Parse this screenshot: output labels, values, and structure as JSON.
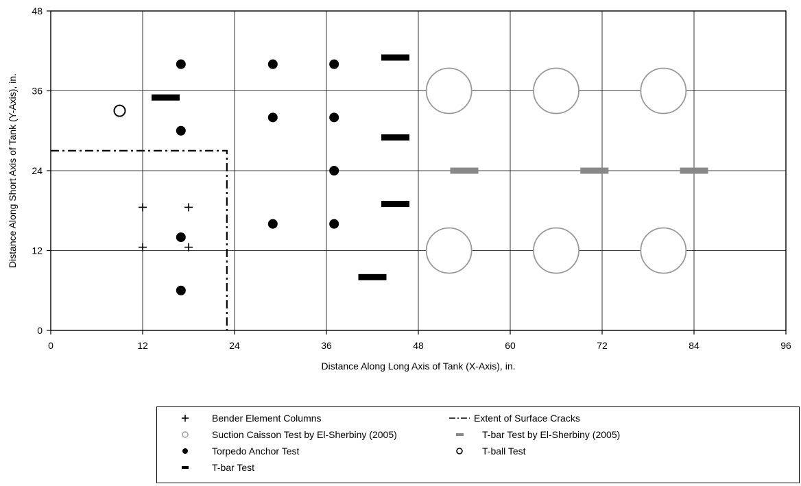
{
  "chart_data": {
    "type": "scatter",
    "xlabel": "Distance Along Long Axis of Tank (X-Axis), in.",
    "ylabel": "Distance Along Short Axis of Tank (Y-Axis), in.",
    "xlim": [
      0,
      96
    ],
    "ylim": [
      0,
      48
    ],
    "xticks": [
      "0",
      "12",
      "24",
      "36",
      "48",
      "60",
      "72",
      "84",
      "96"
    ],
    "yticks": [
      "0",
      "12",
      "24",
      "36",
      "48"
    ],
    "grid": true,
    "legend_position": "bottom",
    "series": [
      {
        "key": "bender",
        "name": "Bender Element Columns",
        "marker": "plus",
        "color": "#000000",
        "points": [
          [
            12,
            18.5
          ],
          [
            18,
            18.5
          ],
          [
            12,
            12.5
          ],
          [
            18,
            12.5
          ]
        ]
      },
      {
        "key": "cracks",
        "name": "Extent of Surface Cracks",
        "marker": "dashdot-line",
        "color": "#000000",
        "points": [
          [
            0,
            27
          ],
          [
            23,
            27
          ],
          [
            23,
            0
          ]
        ]
      },
      {
        "key": "caisson",
        "name": "Suction Caisson Test by El-Sherbiny (2005)",
        "marker": "open-circle",
        "color": "#999999",
        "points": [
          [
            52,
            36
          ],
          [
            66,
            36
          ],
          [
            80,
            36
          ],
          [
            52,
            12
          ],
          [
            66,
            12
          ],
          [
            80,
            12
          ]
        ]
      },
      {
        "key": "tbar_es",
        "name": "T-bar Test by El-Sherbiny (2005)",
        "marker": "dash",
        "color": "#888888",
        "points": [
          [
            54,
            24
          ],
          [
            71,
            24
          ],
          [
            84,
            24
          ]
        ]
      },
      {
        "key": "torpedo",
        "name": "Torpedo Anchor Test",
        "marker": "filled-circle",
        "color": "#000000",
        "points": [
          [
            17,
            40
          ],
          [
            17,
            30
          ],
          [
            17,
            14
          ],
          [
            17,
            6
          ],
          [
            29,
            40
          ],
          [
            29,
            32
          ],
          [
            29,
            16
          ],
          [
            37,
            40
          ],
          [
            37,
            32
          ],
          [
            37,
            24
          ],
          [
            37,
            16
          ]
        ]
      },
      {
        "key": "tball",
        "name": "T-ball Test",
        "marker": "small-open-circle",
        "color": "#000000",
        "points": [
          [
            9,
            33
          ]
        ]
      },
      {
        "key": "tbar",
        "name": "T-bar Test",
        "marker": "dash",
        "color": "#000000",
        "points": [
          [
            15,
            35
          ],
          [
            45,
            41
          ],
          [
            45,
            29
          ],
          [
            45,
            19
          ],
          [
            42,
            8
          ]
        ]
      }
    ]
  },
  "legend": {
    "items": [
      {
        "key": "bender",
        "label": "Bender Element Columns"
      },
      {
        "key": "cracks",
        "label": "Extent of Surface Cracks"
      },
      {
        "key": "caisson",
        "label": "Suction Caisson Test by El-Sherbiny (2005)"
      },
      {
        "key": "tbar_es",
        "label": "T-bar Test by El-Sherbiny (2005)"
      },
      {
        "key": "torpedo",
        "label": "Torpedo Anchor Test"
      },
      {
        "key": "tball",
        "label": "T-ball Test"
      },
      {
        "key": "tbar",
        "label": "T-bar Test"
      }
    ]
  }
}
